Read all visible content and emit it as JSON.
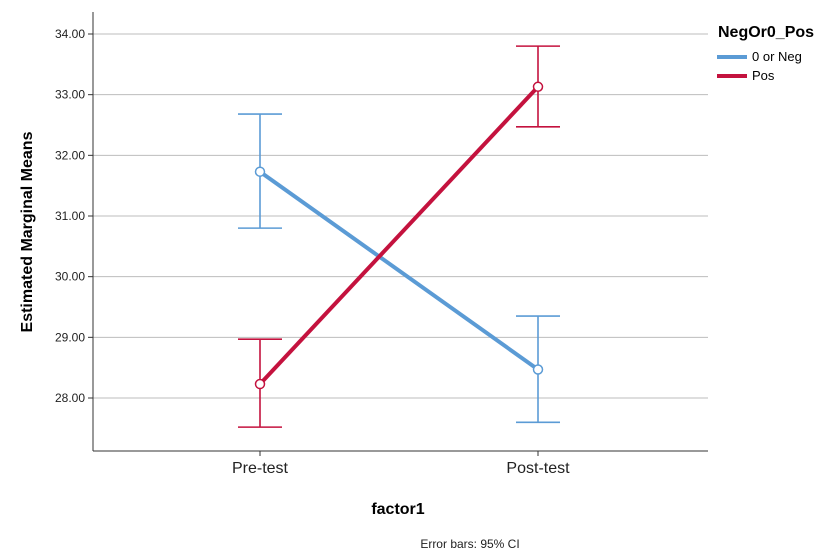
{
  "chart_data": {
    "type": "line",
    "categories": [
      "Pre-test",
      "Post-test"
    ],
    "xlabel": "factor1",
    "ylabel": "Estimated Marginal Means",
    "ylim": [
      27.2,
      34.35
    ],
    "yticks": [
      "28.00",
      "29.00",
      "30.00",
      "31.00",
      "32.00",
      "33.00",
      "34.00"
    ],
    "grid": true,
    "legend": {
      "title": "NegOr0_Pos",
      "placement": "top-right"
    },
    "series": [
      {
        "name": "0 or Neg",
        "color": "#5b9bd5",
        "values": [
          31.73,
          28.47
        ],
        "ci_low": [
          30.8,
          27.6
        ],
        "ci_high": [
          32.68,
          29.35
        ]
      },
      {
        "name": "Pos",
        "color": "#c4123e",
        "values": [
          28.23,
          33.13
        ],
        "ci_low": [
          27.52,
          32.47
        ],
        "ci_high": [
          28.97,
          33.8
        ]
      }
    ],
    "note": "Error bars: 95% CI"
  }
}
